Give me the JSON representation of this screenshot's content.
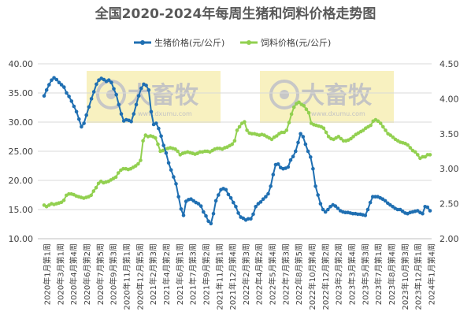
{
  "chart_data": {
    "type": "line",
    "title": "全国2020-2024年每周生猪和饲料价格走势图",
    "y_left": {
      "min": 10,
      "max": 40,
      "ticks": [
        "10.00",
        "15.00",
        "20.00",
        "25.00",
        "30.00",
        "35.00",
        "40.00"
      ]
    },
    "y_right": {
      "min": 2.0,
      "max": 4.5,
      "ticks": [
        "2.00",
        "2.50",
        "3.00",
        "3.50",
        "4.00",
        "4.50"
      ]
    },
    "grid": true,
    "legend_position": "top",
    "watermark": {
      "brand": "大畜牧",
      "url": "www.dxumu.com"
    },
    "x_tick_labels": [
      "2020年1月第1周",
      "2020年3月第1周",
      "2020年4月第4周",
      "2020年6月第2周",
      "2020年7月第5周",
      "2020年9月第3周",
      "2020年11月第1周",
      "2020年12月第5周",
      "2021年2月第3周",
      "2021年4月第2周",
      "2021年6月第1周",
      "2021年7月第3周",
      "2021年9月第2周",
      "2021年11月第1周",
      "2021年12月第4周",
      "2022年2月第3周",
      "2022年4月第2周",
      "2022年5月第4周",
      "2022年7月第3周",
      "2022年8月第5周",
      "2022年10月第4周",
      "2022年12月第2周",
      "2023年2月第2周",
      "2023年3月第4周",
      "2023年5月第3周",
      "2023年7月第1周",
      "2023年8月第4周",
      "2023年10月第3周",
      "2023年12月第1周",
      "2024年1月第4周"
    ],
    "series": [
      {
        "name": "生猪价格(元/公斤)",
        "axis": "left",
        "color": "#1f6fb2",
        "values": [
          34.5,
          35.5,
          36.4,
          37.2,
          37.6,
          37.3,
          36.8,
          36.4,
          36.0,
          35.0,
          34.4,
          33.6,
          32.7,
          31.8,
          30.5,
          29.2,
          29.8,
          31.2,
          32.6,
          34.0,
          35.2,
          36.5,
          37.2,
          37.5,
          37.3,
          37.0,
          37.2,
          36.8,
          35.7,
          34.7,
          33.0,
          31.4,
          30.2,
          30.4,
          30.3,
          30.1,
          31.4,
          33.0,
          34.5,
          35.8,
          36.5,
          36.3,
          35.5,
          31.8,
          29.6,
          29.8,
          28.9,
          27.6,
          26.0,
          24.7,
          23.0,
          21.8,
          20.6,
          19.4,
          17.2,
          15.1,
          14.0,
          16.4,
          16.7,
          16.8,
          16.5,
          16.2,
          16.0,
          15.6,
          14.6,
          13.9,
          13.0,
          12.6,
          14.3,
          16.5,
          17.5,
          18.4,
          18.6,
          18.4,
          17.6,
          17.0,
          16.2,
          15.5,
          14.4,
          13.7,
          13.5,
          13.2,
          13.4,
          13.4,
          14.2,
          15.5,
          16.0,
          16.3,
          16.8,
          17.2,
          17.7,
          19.0,
          21.0,
          22.7,
          22.8,
          22.2,
          22.0,
          22.1,
          22.3,
          23.5,
          24.1,
          25.0,
          26.5,
          28.0,
          27.5,
          26.2,
          25.0,
          24.0,
          22.0,
          19.0,
          17.5,
          16.0,
          15.0,
          14.6,
          15.0,
          15.5,
          15.8,
          15.6,
          15.2,
          14.8,
          14.6,
          14.5,
          14.5,
          14.4,
          14.3,
          14.3,
          14.2,
          14.2,
          14.1,
          14.0,
          15.0,
          16.2,
          17.2,
          17.2,
          17.2,
          17.0,
          16.8,
          16.5,
          16.1,
          15.8,
          15.5,
          15.2,
          15.0,
          15.0,
          14.7,
          14.4,
          14.3,
          14.5,
          14.6,
          14.7,
          14.8,
          14.5,
          14.3,
          15.5,
          15.4,
          14.8
        ]
      },
      {
        "name": "饲料价格(元/公斤)",
        "axis": "right",
        "color": "#92d050",
        "values": [
          2.48,
          2.46,
          2.48,
          2.5,
          2.49,
          2.5,
          2.51,
          2.52,
          2.55,
          2.62,
          2.64,
          2.64,
          2.63,
          2.61,
          2.6,
          2.59,
          2.58,
          2.59,
          2.6,
          2.62,
          2.68,
          2.73,
          2.79,
          2.82,
          2.8,
          2.81,
          2.82,
          2.84,
          2.86,
          2.88,
          2.94,
          2.98,
          3.0,
          3.0,
          2.99,
          3.0,
          3.02,
          3.04,
          3.07,
          3.12,
          3.4,
          3.48,
          3.46,
          3.47,
          3.46,
          3.44,
          3.35,
          3.25,
          3.26,
          3.28,
          3.29,
          3.3,
          3.29,
          3.28,
          3.25,
          3.2,
          3.22,
          3.23,
          3.24,
          3.23,
          3.22,
          3.21,
          3.22,
          3.24,
          3.24,
          3.25,
          3.25,
          3.24,
          3.26,
          3.28,
          3.29,
          3.29,
          3.28,
          3.3,
          3.31,
          3.33,
          3.35,
          3.4,
          3.55,
          3.6,
          3.65,
          3.67,
          3.55,
          3.51,
          3.5,
          3.5,
          3.49,
          3.48,
          3.49,
          3.48,
          3.46,
          3.44,
          3.42,
          3.45,
          3.47,
          3.5,
          3.52,
          3.52,
          3.55,
          3.66,
          3.78,
          3.88,
          3.93,
          3.95,
          3.92,
          3.9,
          3.85,
          3.8,
          3.65,
          3.63,
          3.62,
          3.61,
          3.6,
          3.58,
          3.52,
          3.46,
          3.43,
          3.42,
          3.44,
          3.46,
          3.43,
          3.4,
          3.4,
          3.41,
          3.43,
          3.46,
          3.49,
          3.51,
          3.53,
          3.55,
          3.58,
          3.6,
          3.62,
          3.68,
          3.7,
          3.68,
          3.65,
          3.6,
          3.55,
          3.5,
          3.48,
          3.45,
          3.42,
          3.4,
          3.38,
          3.37,
          3.36,
          3.34,
          3.3,
          3.26,
          3.24,
          3.2,
          3.15,
          3.17,
          3.17,
          3.2,
          3.2
        ]
      }
    ]
  }
}
